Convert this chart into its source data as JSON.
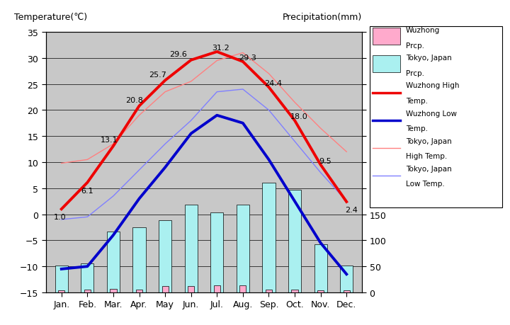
{
  "months": [
    "Jan.",
    "Feb.",
    "Mar.",
    "Apr.",
    "May",
    "Jun.",
    "Jul.",
    "Aug.",
    "Sep.",
    "Oct.",
    "Nov.",
    "Dec."
  ],
  "wuzhong_high": [
    1.0,
    6.1,
    13.1,
    20.8,
    25.7,
    29.6,
    31.2,
    29.3,
    24.4,
    18.0,
    9.5,
    2.4
  ],
  "wuzhong_low": [
    -10.5,
    -10.0,
    -4.0,
    3.0,
    9.0,
    15.5,
    19.0,
    17.5,
    10.5,
    2.5,
    -5.5,
    -11.5
  ],
  "tokyo_high": [
    9.8,
    10.5,
    13.5,
    19.0,
    23.5,
    25.5,
    29.5,
    31.0,
    27.0,
    21.5,
    16.5,
    12.0
  ],
  "tokyo_low": [
    -1.0,
    -0.5,
    3.5,
    8.5,
    13.5,
    18.0,
    23.5,
    24.0,
    20.0,
    14.0,
    8.0,
    2.5
  ],
  "wuzhong_precip_mm": [
    4,
    5,
    7,
    6,
    12,
    12,
    13,
    13,
    6,
    5,
    4,
    4
  ],
  "tokyo_precip_mm": [
    52,
    56,
    117,
    125,
    138,
    168,
    154,
    168,
    210,
    197,
    93,
    51
  ],
  "temp_ylim": [
    -15,
    35
  ],
  "precip_ylim": [
    0,
    500
  ],
  "wuzhong_high_labels": [
    "1.0",
    "6.1",
    "13.1",
    "20.8",
    "25.7",
    "29.6",
    "31.2",
    "29.3",
    "24.4",
    "18.0",
    "9.5",
    "2.4"
  ],
  "bg_color": "#c8c8c8",
  "wuzhong_high_color": "#ee0000",
  "wuzhong_low_color": "#0000cc",
  "tokyo_high_color": "#ff8080",
  "tokyo_low_color": "#8080ff",
  "wuzhong_prcp_color": "#ffaacc",
  "tokyo_prcp_color": "#aaf0f0",
  "title_left": "Temperature(℃)",
  "title_right": "Precipitation(mm)"
}
